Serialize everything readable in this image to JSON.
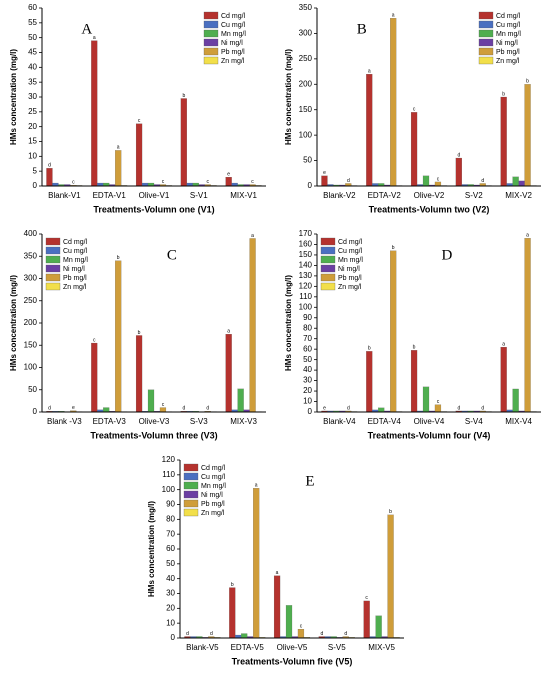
{
  "chart_data": [
    {
      "type": "bar",
      "panel": "A",
      "xlabel": "Treatments-Volumn one (V1)",
      "ylabel": "HMs concentration (mg/l)",
      "categories": [
        "Blank-V1",
        "EDTA-V1",
        "Olive-V1",
        "S-V1",
        "MIX-V1"
      ],
      "ylim": [
        0,
        60
      ],
      "yticks": [
        0,
        5,
        10,
        15,
        20,
        25,
        30,
        35,
        40,
        45,
        50,
        55,
        60
      ],
      "legend": "top-right",
      "series": [
        {
          "name": "Cd mg/l",
          "color": "#b5322e",
          "values": [
            6,
            49,
            21,
            29.5,
            3
          ],
          "letters": [
            "d",
            "a",
            "c",
            "b",
            "e"
          ]
        },
        {
          "name": "Cu mg/l",
          "color": "#4a6fc0",
          "values": [
            1,
            1,
            1,
            1,
            1
          ]
        },
        {
          "name": "Mn mg/l",
          "color": "#4fae4f",
          "values": [
            0.5,
            1,
            1,
            1,
            0.5
          ]
        },
        {
          "name": "Ni mg/l",
          "color": "#6b3fa3",
          "values": [
            0.5,
            0.5,
            0.5,
            0.5,
            0.5
          ]
        },
        {
          "name": "Pb mg/l",
          "color": "#cf9d3a",
          "values": [
            0.3,
            12,
            0.5,
            0.5,
            0.5
          ],
          "letters": [
            "c",
            "a",
            "c",
            "c",
            "c"
          ]
        },
        {
          "name": "Zn mg/l",
          "color": "#f2df4a",
          "values": [
            0.2,
            0.2,
            0.2,
            0.2,
            0.2
          ]
        }
      ]
    },
    {
      "type": "bar",
      "panel": "B",
      "xlabel": "Treatments-Volumn two (V2)",
      "ylabel": "HMs concentration (mg/l)",
      "categories": [
        "Blank-V2",
        "EDTA-V2",
        "Olive-V2",
        "S-V2",
        "MIX-V2"
      ],
      "ylim": [
        0,
        350
      ],
      "yticks": [
        0,
        50,
        100,
        150,
        200,
        250,
        300,
        350
      ],
      "legend": "top-right",
      "series": [
        {
          "name": "Cd mg/l",
          "color": "#b5322e",
          "values": [
            20,
            220,
            145,
            55,
            175
          ],
          "letters": [
            "e",
            "a",
            "c",
            "d",
            "b"
          ]
        },
        {
          "name": "Cu mg/l",
          "color": "#4a6fc0",
          "values": [
            3,
            5,
            3,
            3,
            5
          ]
        },
        {
          "name": "Mn mg/l",
          "color": "#4fae4f",
          "values": [
            2,
            5,
            20,
            3,
            18
          ]
        },
        {
          "name": "Ni mg/l",
          "color": "#6b3fa3",
          "values": [
            2,
            2,
            2,
            2,
            10
          ]
        },
        {
          "name": "Pb mg/l",
          "color": "#cf9d3a",
          "values": [
            5,
            330,
            8,
            5,
            200
          ],
          "letters": [
            "d",
            "a",
            "c",
            "d",
            "b"
          ]
        },
        {
          "name": "Zn mg/l",
          "color": "#f2df4a",
          "values": [
            1,
            1,
            1,
            1,
            1
          ]
        }
      ]
    },
    {
      "type": "bar",
      "panel": "C",
      "xlabel": "Treatments-Volumn three (V3)",
      "ylabel": "HMs concentration (mg/l)",
      "categories": [
        "Blank -V3",
        "EDTA-V3",
        "Olive-V3",
        "S-V3",
        "MIX-V3"
      ],
      "ylim": [
        0,
        400
      ],
      "yticks": [
        0,
        50,
        100,
        150,
        200,
        250,
        300,
        350,
        400
      ],
      "legend": "top-left",
      "series": [
        {
          "name": "Cd mg/l",
          "color": "#b5322e",
          "values": [
            2,
            155,
            172,
            2,
            175
          ],
          "letters": [
            "d",
            "c",
            "b",
            "d",
            "a"
          ]
        },
        {
          "name": "Cu mg/l",
          "color": "#4a6fc0",
          "values": [
            2,
            5,
            2,
            2,
            5
          ]
        },
        {
          "name": "Mn mg/l",
          "color": "#4fae4f",
          "values": [
            2,
            10,
            50,
            2,
            52
          ]
        },
        {
          "name": "Ni mg/l",
          "color": "#6b3fa3",
          "values": [
            1,
            2,
            2,
            1,
            5
          ]
        },
        {
          "name": "Pb mg/l",
          "color": "#cf9d3a",
          "values": [
            3,
            340,
            10,
            2,
            390
          ],
          "letters": [
            "e",
            "b",
            "c",
            "d",
            "a"
          ]
        },
        {
          "name": "Zn mg/l",
          "color": "#f2df4a",
          "values": [
            1,
            1,
            1,
            1,
            1
          ]
        }
      ]
    },
    {
      "type": "bar",
      "panel": "D",
      "xlabel": "Treatments-Volumn four (V4)",
      "ylabel": "HMs concentration (mg/l)",
      "categories": [
        "Blank-V4",
        "EDTA-V4",
        "Olive-V4",
        "S-V4",
        "MIX-V4"
      ],
      "ylim": [
        0,
        170
      ],
      "yticks": [
        0,
        10,
        20,
        30,
        40,
        50,
        60,
        70,
        80,
        90,
        100,
        110,
        120,
        130,
        140,
        150,
        160,
        170
      ],
      "legend": "top-left",
      "series": [
        {
          "name": "Cd mg/l",
          "color": "#b5322e",
          "values": [
            1,
            58,
            59,
            1,
            62
          ],
          "letters": [
            "e",
            "b",
            "b",
            "d",
            "a"
          ]
        },
        {
          "name": "Cu mg/l",
          "color": "#4a6fc0",
          "values": [
            1,
            2,
            1,
            1,
            2
          ]
        },
        {
          "name": "Mn mg/l",
          "color": "#4fae4f",
          "values": [
            1,
            4,
            24,
            1,
            22
          ]
        },
        {
          "name": "Ni mg/l",
          "color": "#6b3fa3",
          "values": [
            1,
            1,
            1,
            1,
            1
          ]
        },
        {
          "name": "Pb mg/l",
          "color": "#cf9d3a",
          "values": [
            1,
            154,
            7,
            1,
            166
          ],
          "letters": [
            "d",
            "b",
            "c",
            "d",
            "a"
          ]
        },
        {
          "name": "Zn mg/l",
          "color": "#f2df4a",
          "values": [
            0.5,
            0.5,
            0.5,
            0.5,
            0.5
          ]
        }
      ]
    },
    {
      "type": "bar",
      "panel": "E",
      "xlabel": "Treatments-Volumn five (V5)",
      "ylabel": "HMs concentration (mg/l)",
      "categories": [
        "Blank-V5",
        "EDTA-V5",
        "Olive-V5",
        "S-V5",
        "MIX-V5"
      ],
      "ylim": [
        0,
        120
      ],
      "yticks": [
        0,
        10,
        20,
        30,
        40,
        50,
        60,
        70,
        80,
        90,
        100,
        110,
        120
      ],
      "legend": "top-left",
      "series": [
        {
          "name": "Cd mg/l",
          "color": "#b5322e",
          "values": [
            1,
            34,
            42,
            1,
            25
          ],
          "letters": [
            "d",
            "b",
            "a",
            "d",
            "c"
          ]
        },
        {
          "name": "Cu mg/l",
          "color": "#4a6fc0",
          "values": [
            1,
            2,
            1,
            1,
            1
          ]
        },
        {
          "name": "Mn mg/l",
          "color": "#4fae4f",
          "values": [
            1,
            3,
            22,
            1,
            15
          ]
        },
        {
          "name": "Ni mg/l",
          "color": "#6b3fa3",
          "values": [
            0.5,
            1,
            1,
            0.5,
            1
          ]
        },
        {
          "name": "Pb mg/l",
          "color": "#cf9d3a",
          "values": [
            1,
            101,
            6,
            1,
            83
          ],
          "letters": [
            "d",
            "a",
            "c",
            "d",
            "b"
          ]
        },
        {
          "name": "Zn mg/l",
          "color": "#f2df4a",
          "values": [
            0.5,
            0.5,
            0.5,
            0.5,
            0.5
          ]
        }
      ]
    }
  ]
}
